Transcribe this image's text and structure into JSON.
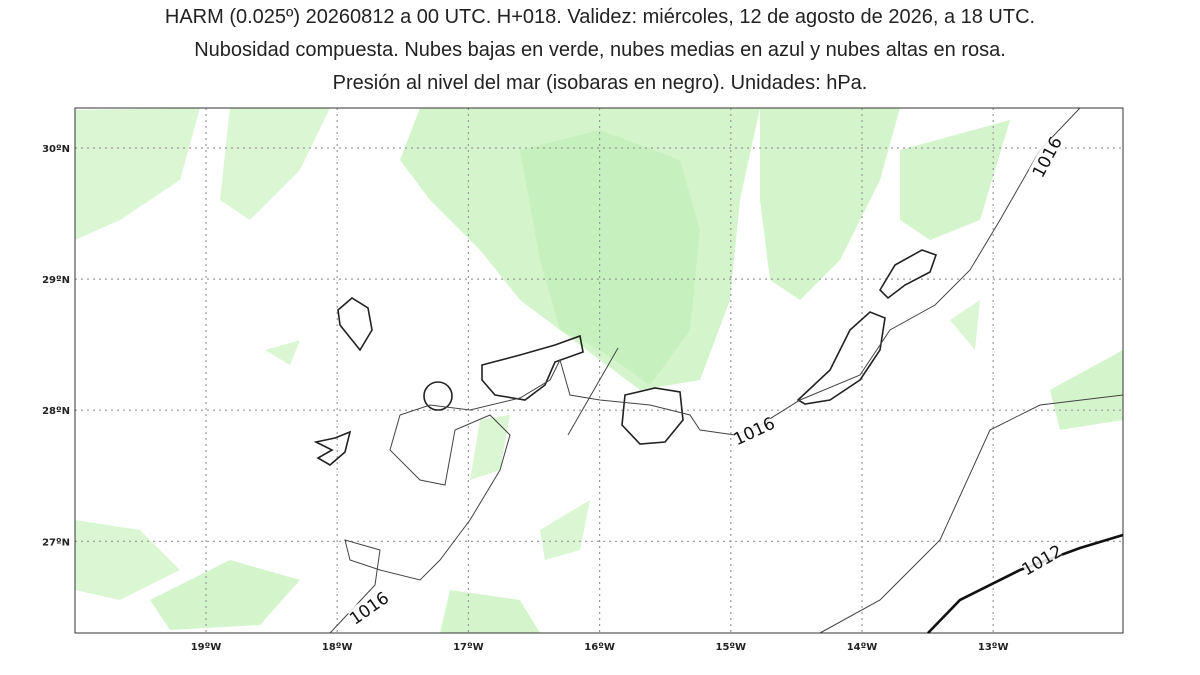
{
  "header": {
    "title_lines": [
      "HARM (0.025º) 20260812 a 00 UTC. H+018. Validez: miércoles, 12 de agosto de 2026, a 18 UTC.",
      "Nubosidad compuesta. Nubes bajas en verde, nubes medias en azul y nubes altas en rosa.",
      "Presión al nivel del mar (isobaras en negro). Unidades: hPa."
    ]
  },
  "map": {
    "latitude_labels": [
      "30ºN",
      "29ºN",
      "28ºN",
      "27ºN"
    ],
    "longitude_labels": [
      "19ºW",
      "18ºW",
      "17ºW",
      "16ºW",
      "15ºW",
      "14ºW",
      "13ºW"
    ],
    "isobar_labels": [
      "1016",
      "1016",
      "1016",
      "1012"
    ]
  }
}
